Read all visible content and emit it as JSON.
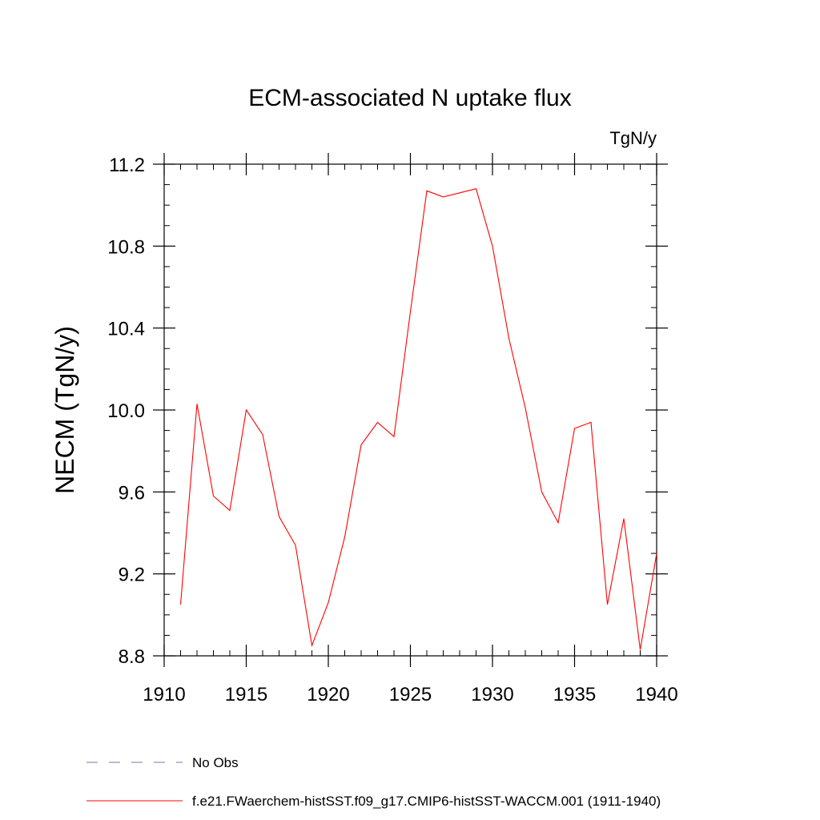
{
  "chart_data": {
    "type": "line",
    "title": "ECM-associated N uptake flux",
    "units_label": "TgN/y",
    "xlabel": "",
    "ylabel": "NECM  (TgN/y)",
    "xlim": [
      1910,
      1940
    ],
    "ylim": [
      8.8,
      11.2
    ],
    "x_ticks": [
      1910,
      1915,
      1920,
      1925,
      1930,
      1935,
      1940
    ],
    "x_tick_labels": [
      "1910",
      "1915",
      "1920",
      "1925",
      "1930",
      "1935",
      "1940"
    ],
    "y_ticks": [
      8.8,
      9.2,
      9.6,
      10.0,
      10.4,
      10.8,
      11.2
    ],
    "y_tick_labels": [
      "8.8",
      "9.2",
      "9.6",
      "10.0",
      "10.4",
      "10.8",
      "11.2"
    ],
    "grid": false,
    "legend_position": "bottom",
    "series": [
      {
        "name": "No Obs",
        "color": "#7777aa",
        "style": "dashed",
        "x": [],
        "y": []
      },
      {
        "name": "f.e21.FWaerchem-histSST.f09_g17.CMIP6-histSST-WACCM.001 (1911-1940)",
        "color": "#ff0000",
        "style": "solid",
        "x": [
          1911,
          1912,
          1913,
          1914,
          1915,
          1916,
          1917,
          1918,
          1919,
          1920,
          1921,
          1922,
          1923,
          1924,
          1925,
          1926,
          1927,
          1928,
          1929,
          1930,
          1931,
          1932,
          1933,
          1934,
          1935,
          1936,
          1937,
          1938,
          1939,
          1940
        ],
        "y": [
          9.05,
          10.03,
          9.58,
          9.51,
          10.0,
          9.88,
          9.48,
          9.34,
          8.85,
          9.06,
          9.38,
          9.83,
          9.94,
          9.87,
          10.48,
          11.07,
          11.04,
          11.06,
          11.08,
          10.8,
          10.35,
          10.01,
          9.6,
          9.45,
          9.91,
          9.94,
          9.05,
          9.47,
          8.83,
          9.3
        ]
      }
    ]
  }
}
